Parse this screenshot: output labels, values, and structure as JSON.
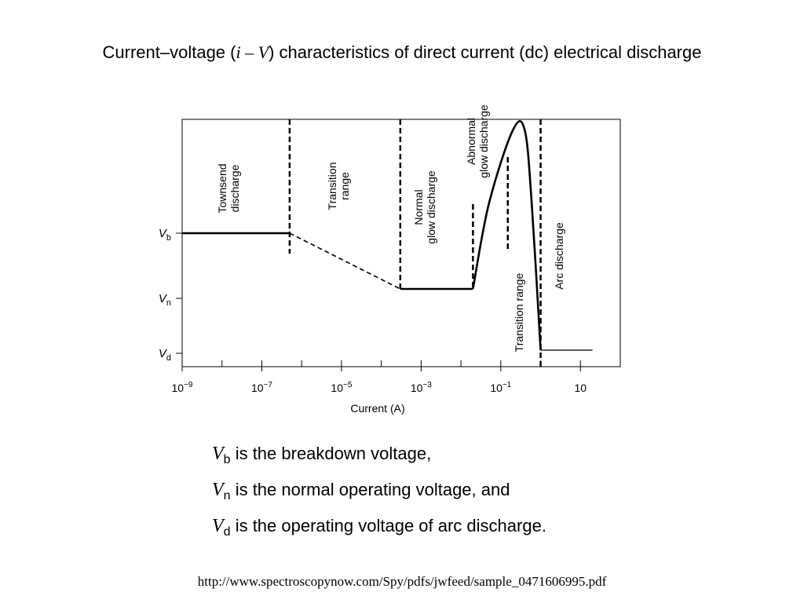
{
  "slide": {
    "title_prefix": "Current–voltage (",
    "title_i": "i",
    "title_dash": " – ",
    "title_V": "V",
    "title_suffix": ") characteristics of direct current (dc) electrical discharge"
  },
  "chart_data": {
    "type": "line",
    "xlabel": "Current (A)",
    "xscale": "log",
    "xlim": [
      1e-09,
      100
    ],
    "xticks": [
      {
        "value": 1e-09,
        "base": "10",
        "exp": "−9"
      },
      {
        "value": 1e-07,
        "base": "10",
        "exp": "−7"
      },
      {
        "value": 1e-05,
        "base": "10",
        "exp": "−5"
      },
      {
        "value": 0.001,
        "base": "10",
        "exp": "−3"
      },
      {
        "value": 0.1,
        "base": "10",
        "exp": "−1"
      },
      {
        "value": 10,
        "base": "10",
        "exp": ""
      }
    ],
    "minor_xticks": [
      1e-08,
      1e-06,
      0.0001,
      0.01,
      1
    ],
    "yticks": [
      {
        "key": "Vb",
        "symbol": "V",
        "sub": "b"
      },
      {
        "key": "Vn",
        "symbol": "V",
        "sub": "n"
      },
      {
        "key": "Vd",
        "symbol": "V",
        "sub": "d"
      }
    ],
    "grid": false,
    "region_labels": [
      {
        "lines": [
          "Townsend",
          "discharge"
        ],
        "x": 2e-08,
        "y": "mid-upper"
      },
      {
        "lines": [
          "Transition",
          "range"
        ],
        "x": 2e-06,
        "y": "mid-upper"
      },
      {
        "lines": [
          "Normal",
          "glow discharge"
        ],
        "x": 0.001,
        "y": "Vb"
      },
      {
        "lines": [
          "Abnormal",
          "glow discharge"
        ],
        "x": 0.05,
        "y": "top"
      },
      {
        "lines": [
          "Transition range"
        ],
        "x": 0.3,
        "y": "Vn"
      },
      {
        "lines": [
          "Arc discharge"
        ],
        "x": 2,
        "y": "Vb"
      }
    ],
    "boundaries": [
      {
        "x": 5e-07,
        "extent": "full"
      },
      {
        "x": 0.0003,
        "extent": "full"
      },
      {
        "x": 0.02,
        "extent": "partial"
      },
      {
        "x": 0.15,
        "extent": "partial"
      },
      {
        "x": 1.0,
        "extent": "full"
      }
    ],
    "solid_segments": [
      [
        [
          1e-09,
          "Vb"
        ],
        [
          5e-07,
          "Vb"
        ]
      ],
      [
        [
          0.0003,
          "Vn"
        ],
        [
          0.02,
          "Vn"
        ]
      ],
      [
        [
          0.02,
          "Vn"
        ],
        [
          0.05,
          "above-Vb"
        ],
        [
          0.2,
          "peak"
        ],
        [
          0.4,
          "peak"
        ],
        [
          0.6,
          "above-Vb"
        ],
        [
          1.0,
          "Vd"
        ]
      ],
      [
        [
          1.0,
          "Vd"
        ],
        [
          20,
          "Vd"
        ]
      ]
    ],
    "dashed_segments": [
      [
        [
          5e-07,
          "Vb"
        ],
        [
          0.0003,
          "Vn"
        ]
      ]
    ]
  },
  "notes": [
    {
      "symbol": "V",
      "sub": "b",
      "text": " is the breakdown voltage,"
    },
    {
      "symbol": "V",
      "sub": "n",
      "text": " is the normal operating voltage, and"
    },
    {
      "symbol": "V",
      "sub": "d",
      "text": " is the operating voltage of arc discharge."
    }
  ],
  "source_url": "http://www.spectroscopynow.com/Spy/pdfs/jwfeed/sample_0471606995.pdf"
}
